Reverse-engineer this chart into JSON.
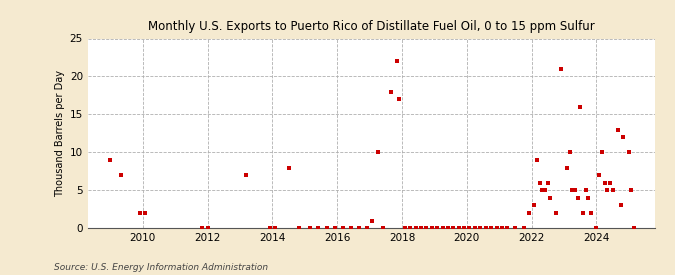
{
  "title": "Monthly U.S. Exports to Puerto Rico of Distillate Fuel Oil, 0 to 15 ppm Sulfur",
  "ylabel": "Thousand Barrels per Day",
  "source": "Source: U.S. Energy Information Administration",
  "background_color": "#f5ead0",
  "plot_bg_color": "#ffffff",
  "marker_color": "#cc0000",
  "marker_size": 9,
  "ylim": [
    0,
    25
  ],
  "yticks": [
    0,
    5,
    10,
    15,
    20,
    25
  ],
  "xlim_start": 2008.3,
  "xlim_end": 2025.8,
  "xticks": [
    2010,
    2012,
    2014,
    2016,
    2018,
    2020,
    2022,
    2024
  ],
  "data_points": [
    [
      2009.0,
      9.0
    ],
    [
      2009.33,
      7.0
    ],
    [
      2009.92,
      2.0
    ],
    [
      2010.08,
      2.0
    ],
    [
      2011.83,
      0.0
    ],
    [
      2012.0,
      0.0
    ],
    [
      2013.17,
      7.0
    ],
    [
      2013.92,
      0.0
    ],
    [
      2014.08,
      0.0
    ],
    [
      2014.5,
      8.0
    ],
    [
      2014.83,
      0.0
    ],
    [
      2015.17,
      0.0
    ],
    [
      2015.42,
      0.0
    ],
    [
      2015.67,
      0.0
    ],
    [
      2015.92,
      0.0
    ],
    [
      2016.17,
      0.0
    ],
    [
      2016.42,
      0.0
    ],
    [
      2016.67,
      0.0
    ],
    [
      2016.92,
      0.0
    ],
    [
      2017.08,
      1.0
    ],
    [
      2017.25,
      10.0
    ],
    [
      2017.42,
      0.0
    ],
    [
      2017.67,
      18.0
    ],
    [
      2017.83,
      22.0
    ],
    [
      2017.92,
      17.0
    ],
    [
      2018.08,
      0.0
    ],
    [
      2018.25,
      0.0
    ],
    [
      2018.42,
      0.0
    ],
    [
      2018.58,
      0.0
    ],
    [
      2018.75,
      0.0
    ],
    [
      2018.92,
      0.0
    ],
    [
      2019.08,
      0.0
    ],
    [
      2019.25,
      0.0
    ],
    [
      2019.42,
      0.0
    ],
    [
      2019.58,
      0.0
    ],
    [
      2019.75,
      0.0
    ],
    [
      2019.92,
      0.0
    ],
    [
      2020.08,
      0.0
    ],
    [
      2020.25,
      0.0
    ],
    [
      2020.42,
      0.0
    ],
    [
      2020.58,
      0.0
    ],
    [
      2020.75,
      0.0
    ],
    [
      2020.92,
      0.0
    ],
    [
      2021.08,
      0.0
    ],
    [
      2021.25,
      0.0
    ],
    [
      2021.5,
      0.0
    ],
    [
      2021.75,
      0.0
    ],
    [
      2021.92,
      2.0
    ],
    [
      2022.08,
      3.0
    ],
    [
      2022.17,
      9.0
    ],
    [
      2022.25,
      6.0
    ],
    [
      2022.33,
      5.0
    ],
    [
      2022.42,
      5.0
    ],
    [
      2022.5,
      6.0
    ],
    [
      2022.58,
      4.0
    ],
    [
      2022.75,
      2.0
    ],
    [
      2022.92,
      21.0
    ],
    [
      2023.08,
      8.0
    ],
    [
      2023.17,
      10.0
    ],
    [
      2023.25,
      5.0
    ],
    [
      2023.33,
      5.0
    ],
    [
      2023.42,
      4.0
    ],
    [
      2023.5,
      16.0
    ],
    [
      2023.58,
      2.0
    ],
    [
      2023.67,
      5.0
    ],
    [
      2023.75,
      4.0
    ],
    [
      2023.83,
      2.0
    ],
    [
      2024.0,
      0.0
    ],
    [
      2024.08,
      7.0
    ],
    [
      2024.17,
      10.0
    ],
    [
      2024.25,
      6.0
    ],
    [
      2024.33,
      5.0
    ],
    [
      2024.42,
      6.0
    ],
    [
      2024.5,
      5.0
    ],
    [
      2024.67,
      13.0
    ],
    [
      2024.75,
      3.0
    ],
    [
      2024.83,
      12.0
    ],
    [
      2025.0,
      10.0
    ],
    [
      2025.08,
      5.0
    ],
    [
      2025.17,
      0.0
    ]
  ]
}
